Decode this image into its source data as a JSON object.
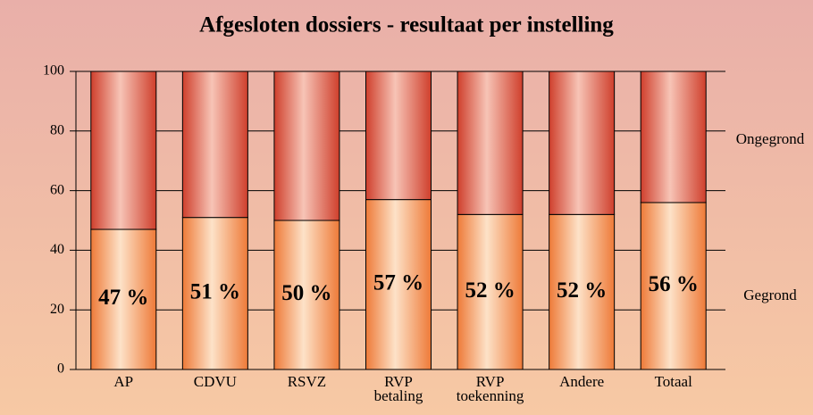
{
  "chart_data": {
    "type": "stacked_bar",
    "title": "Afgesloten dossiers - resultaat per instelling",
    "categories": [
      "AP",
      "CDVU",
      "RSVZ",
      "RVP\nbetaling",
      "RVP\ntoekenning",
      "Andere",
      "Totaal"
    ],
    "series": [
      {
        "name": "Gegrond",
        "color": "#f08848",
        "values": [
          47,
          51,
          50,
          57,
          52,
          52,
          56
        ],
        "value_labels": [
          "47 %",
          "51 %",
          "50 %",
          "57 %",
          "52 %",
          "52 %",
          "56 %"
        ]
      },
      {
        "name": "Ongegrond",
        "color": "#d44a34",
        "values": [
          53,
          49,
          50,
          43,
          48,
          48,
          44
        ]
      }
    ],
    "ylim": [
      0,
      100
    ],
    "yticks": [
      0,
      20,
      40,
      60,
      80,
      100
    ],
    "grid": true
  }
}
